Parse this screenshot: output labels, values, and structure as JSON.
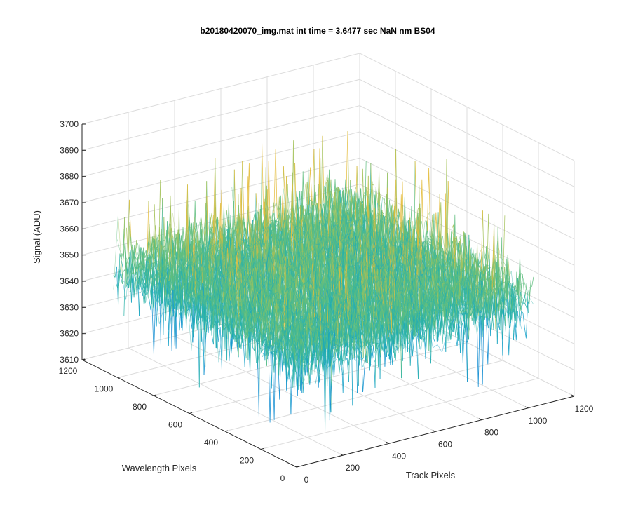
{
  "chart_data": {
    "type": "surface",
    "title": "b20180420070_img.mat int time = 3.6477 sec  NaN nm BS04",
    "xlabel": "Track Pixels",
    "ylabel": "Wavelength Pixels",
    "zlabel": "Signal (ADU)",
    "xlim": [
      0,
      1200
    ],
    "ylim": [
      0,
      1200
    ],
    "zlim": [
      3610,
      3700
    ],
    "xticks": [
      "0",
      "200",
      "400",
      "600",
      "800",
      "1000",
      "1200"
    ],
    "yticks": [
      "0",
      "200",
      "400",
      "600",
      "800",
      "1000",
      "1200"
    ],
    "zticks": [
      "3610",
      "3620",
      "3630",
      "3640",
      "3650",
      "3660",
      "3670",
      "3680",
      "3690",
      "3700"
    ],
    "data_extent": {
      "x": [
        0,
        1024
      ],
      "y": [
        0,
        1024
      ]
    },
    "signal_mean": 3652,
    "signal_range": [
      3615,
      3695
    ],
    "grid": true,
    "colormap": [
      "#0072bd",
      "#0a8ad0",
      "#12a0c8",
      "#2bb3a8",
      "#5fbe7e",
      "#a4c25a",
      "#e3bb3a",
      "#f8d22a"
    ]
  }
}
